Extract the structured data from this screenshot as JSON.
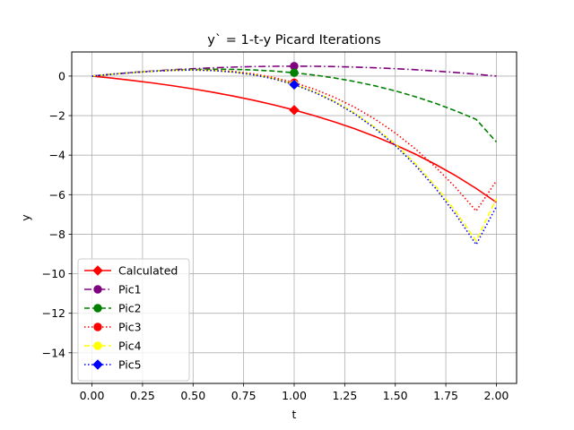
{
  "chart_data": {
    "type": "line",
    "title": "y` = 1-t-y Picard Iterations",
    "xlabel": "t",
    "ylabel": "y",
    "xlim": [
      -0.1,
      2.1
    ],
    "ylim": [
      -15.55,
      1.22
    ],
    "xticks": [
      0.0,
      0.25,
      0.5,
      0.75,
      1.0,
      1.25,
      1.5,
      1.75,
      2.0
    ],
    "xtick_labels": [
      "0.00",
      "0.25",
      "0.50",
      "0.75",
      "1.00",
      "1.25",
      "1.50",
      "1.75",
      "2.00"
    ],
    "yticks": [
      0,
      -2,
      -4,
      -6,
      -8,
      -10,
      -12,
      -14
    ],
    "ytick_labels": [
      "0",
      "−2",
      "−4",
      "−6",
      "−8",
      "−10",
      "−12",
      "−14"
    ],
    "grid": true,
    "legend_position": "lower-left",
    "series": [
      {
        "name": "Calculated",
        "color": "#ff0000",
        "dash": "solid",
        "marker": "diamond",
        "marker_at": 1.0,
        "x": [
          0,
          0.1,
          0.2,
          0.3,
          0.4,
          0.5,
          0.6,
          0.7,
          0.8,
          0.9,
          1.0,
          1.1,
          1.2,
          1.3,
          1.4,
          1.5,
          1.6,
          1.7,
          1.8,
          1.9,
          2.0
        ],
        "y": [
          0,
          -0.105,
          -0.221,
          -0.35,
          -0.492,
          -0.649,
          -0.822,
          -1.014,
          -1.226,
          -1.46,
          -1.718,
          -2.004,
          -2.32,
          -2.669,
          -3.055,
          -3.482,
          -3.953,
          -4.474,
          -5.05,
          -5.686,
          -6.389
        ]
      },
      {
        "name": "Pic1",
        "color": "#800080",
        "dash": "dashdot",
        "marker": "circle",
        "marker_at": 1.0,
        "x": [
          0,
          0.1,
          0.2,
          0.3,
          0.4,
          0.5,
          0.6,
          0.7,
          0.8,
          0.9,
          1.0,
          1.1,
          1.2,
          1.3,
          1.4,
          1.5,
          1.6,
          1.7,
          1.8,
          1.9,
          2.0
        ],
        "y": [
          0,
          0.095,
          0.18,
          0.255,
          0.32,
          0.375,
          0.42,
          0.455,
          0.48,
          0.495,
          0.5,
          0.495,
          0.48,
          0.455,
          0.42,
          0.375,
          0.32,
          0.255,
          0.18,
          0.095,
          0.0
        ]
      },
      {
        "name": "Pic2",
        "color": "#008000",
        "dash": "dashed",
        "marker": "circle",
        "marker_at": 1.0,
        "x": [
          0,
          0.1,
          0.2,
          0.3,
          0.4,
          0.5,
          0.6,
          0.7,
          0.8,
          0.9,
          1.0,
          1.1,
          1.2,
          1.3,
          1.4,
          1.5,
          1.6,
          1.7,
          1.8,
          1.9,
          2.0
        ],
        "y": [
          0,
          0.095,
          0.178,
          0.246,
          0.299,
          0.333,
          0.348,
          0.34,
          0.309,
          0.252,
          0.167,
          0.052,
          -0.096,
          -0.278,
          -0.495,
          -0.75,
          -1.045,
          -1.382,
          -1.764,
          -2.192,
          -3.333
        ]
      },
      {
        "name": "Pic3",
        "color": "#ff0000",
        "dash": "dotted",
        "marker": "circle",
        "marker_at": 1.0,
        "x": [
          0,
          0.1,
          0.2,
          0.3,
          0.4,
          0.5,
          0.6,
          0.7,
          0.8,
          0.9,
          1.0,
          1.1,
          1.2,
          1.3,
          1.4,
          1.5,
          1.6,
          1.7,
          1.8,
          1.9,
          2.0
        ],
        "y": [
          0,
          0.095,
          0.178,
          0.245,
          0.291,
          0.31,
          0.294,
          0.232,
          0.112,
          -0.076,
          -0.333,
          -0.666,
          -1.08,
          -1.583,
          -2.181,
          -2.88,
          -3.688,
          -4.61,
          -5.652,
          -6.824,
          -5.3
        ]
      },
      {
        "name": "Pic4",
        "color": "#ffff00",
        "dash": "dashed",
        "marker": "circle",
        "marker_at": 1.0,
        "x": [
          0,
          0.1,
          0.2,
          0.3,
          0.4,
          0.5,
          0.6,
          0.7,
          0.8,
          0.9,
          1.0,
          1.1,
          1.2,
          1.3,
          1.4,
          1.5,
          1.6,
          1.7,
          1.8,
          1.9,
          2.0
        ],
        "y": [
          0,
          0.095,
          0.178,
          0.245,
          0.29,
          0.305,
          0.28,
          0.206,
          0.074,
          -0.127,
          -0.417,
          -0.8,
          -1.285,
          -1.882,
          -2.6,
          -3.448,
          -4.436,
          -5.574,
          -6.871,
          -8.339,
          -6.2
        ]
      },
      {
        "name": "Pic5",
        "color": "#0000ff",
        "dash": "dotted",
        "marker": "diamond",
        "marker_at": 1.0,
        "x": [
          0,
          0.1,
          0.2,
          0.3,
          0.4,
          0.5,
          0.6,
          0.7,
          0.8,
          0.9,
          1.0,
          1.1,
          1.2,
          1.3,
          1.4,
          1.5,
          1.6,
          1.7,
          1.8,
          1.9,
          2.0
        ],
        "y": [
          0,
          0.095,
          0.178,
          0.245,
          0.29,
          0.304,
          0.277,
          0.2,
          0.062,
          -0.146,
          -0.433,
          -0.82,
          -1.313,
          -1.921,
          -2.652,
          -3.516,
          -4.525,
          -5.689,
          -7.019,
          -8.526,
          -6.6
        ]
      }
    ]
  }
}
